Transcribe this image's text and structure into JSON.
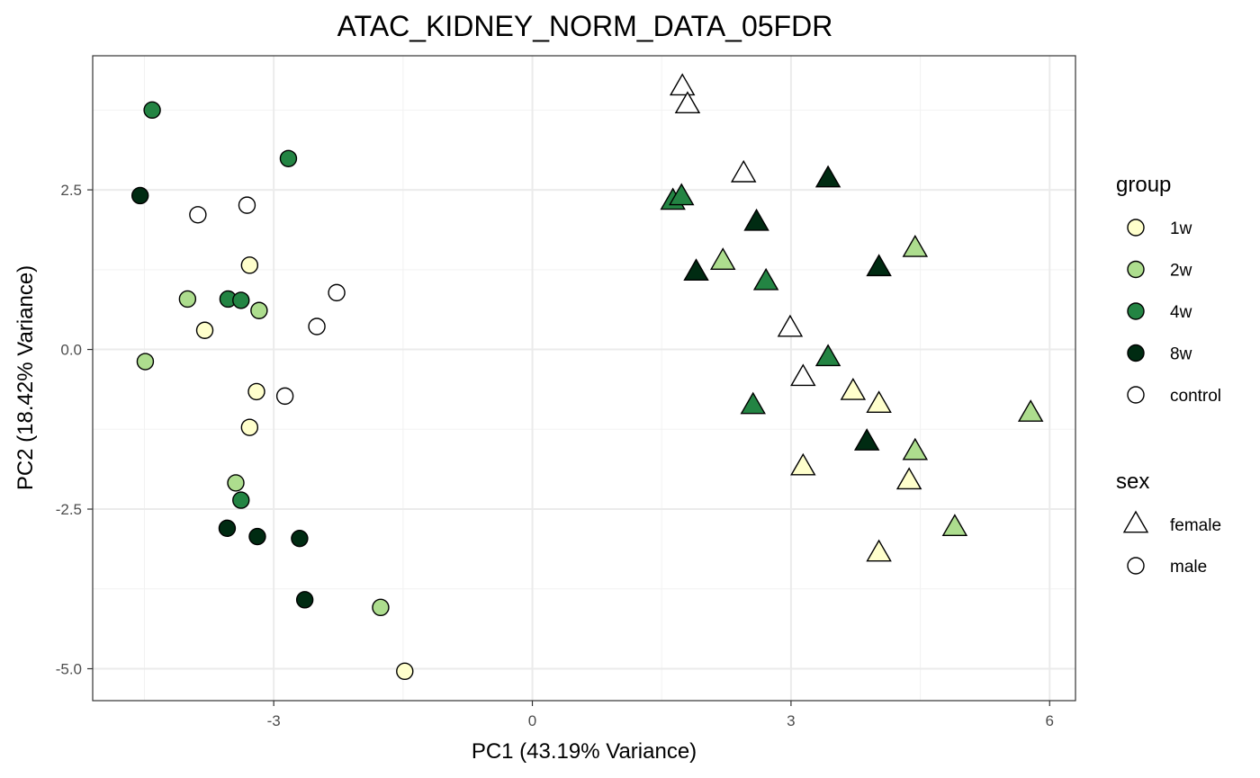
{
  "chart_data": {
    "type": "scatter",
    "title": "ATAC_KIDNEY_NORM_DATA_05FDR",
    "xlabel": "PC1 (43.19% Variance)",
    "ylabel": "PC2 (18.42% Variance)",
    "xlim": [
      -5.1,
      6.3
    ],
    "ylim": [
      -5.5,
      4.6
    ],
    "x_ticks": [
      -3,
      0,
      3,
      6
    ],
    "x_tick_labels": [
      "-3",
      "0",
      "3",
      "6"
    ],
    "y_ticks": [
      2.5,
      0,
      -2.5,
      -5
    ],
    "y_tick_labels": [
      "2.5",
      "0.0",
      "-2.5",
      "-5.0"
    ],
    "grid": true,
    "legend_position": "right",
    "legend_color": {
      "title": "group",
      "items": [
        {
          "label": "1w",
          "color": "#FFFFCC"
        },
        {
          "label": "2w",
          "color": "#ADDD8E"
        },
        {
          "label": "4w",
          "color": "#238443"
        },
        {
          "label": "8w",
          "color": "#002B12"
        },
        {
          "label": "control",
          "color": "#FFFFFF"
        }
      ]
    },
    "legend_shape": {
      "title": "sex",
      "items": [
        {
          "label": "female",
          "shape": "triangle"
        },
        {
          "label": "male",
          "shape": "circle"
        }
      ]
    },
    "points": [
      {
        "x": -4.41,
        "y": 3.75,
        "group": "4w",
        "sex": "male"
      },
      {
        "x": -2.83,
        "y": 2.99,
        "group": "4w",
        "sex": "male"
      },
      {
        "x": -4.55,
        "y": 2.41,
        "group": "8w",
        "sex": "male"
      },
      {
        "x": -3.88,
        "y": 2.11,
        "group": "control",
        "sex": "male"
      },
      {
        "x": -3.31,
        "y": 2.26,
        "group": "control",
        "sex": "male"
      },
      {
        "x": -3.28,
        "y": 1.32,
        "group": "1w",
        "sex": "male"
      },
      {
        "x": -4.0,
        "y": 0.79,
        "group": "2w",
        "sex": "male"
      },
      {
        "x": -3.53,
        "y": 0.79,
        "group": "4w",
        "sex": "male"
      },
      {
        "x": -3.38,
        "y": 0.77,
        "group": "4w",
        "sex": "male"
      },
      {
        "x": -3.17,
        "y": 0.61,
        "group": "2w",
        "sex": "male"
      },
      {
        "x": -2.27,
        "y": 0.89,
        "group": "control",
        "sex": "male"
      },
      {
        "x": -2.5,
        "y": 0.36,
        "group": "control",
        "sex": "male"
      },
      {
        "x": -3.8,
        "y": 0.3,
        "group": "1w",
        "sex": "male"
      },
      {
        "x": -4.49,
        "y": -0.19,
        "group": "2w",
        "sex": "male"
      },
      {
        "x": -3.2,
        "y": -0.66,
        "group": "1w",
        "sex": "male"
      },
      {
        "x": -2.87,
        "y": -0.73,
        "group": "control",
        "sex": "male"
      },
      {
        "x": -3.28,
        "y": -1.22,
        "group": "1w",
        "sex": "male"
      },
      {
        "x": -3.44,
        "y": -2.09,
        "group": "2w",
        "sex": "male"
      },
      {
        "x": -3.38,
        "y": -2.36,
        "group": "4w",
        "sex": "male"
      },
      {
        "x": -3.54,
        "y": -2.8,
        "group": "8w",
        "sex": "male"
      },
      {
        "x": -3.19,
        "y": -2.93,
        "group": "8w",
        "sex": "male"
      },
      {
        "x": -2.7,
        "y": -2.96,
        "group": "8w",
        "sex": "male"
      },
      {
        "x": -2.64,
        "y": -3.92,
        "group": "8w",
        "sex": "male"
      },
      {
        "x": -1.76,
        "y": -4.04,
        "group": "2w",
        "sex": "male"
      },
      {
        "x": -1.48,
        "y": -5.04,
        "group": "1w",
        "sex": "male"
      },
      {
        "x": 1.74,
        "y": 4.11,
        "group": "control",
        "sex": "female"
      },
      {
        "x": 1.8,
        "y": 3.83,
        "group": "control",
        "sex": "female"
      },
      {
        "x": 2.45,
        "y": 2.75,
        "group": "control",
        "sex": "female"
      },
      {
        "x": 3.43,
        "y": 2.67,
        "group": "8w",
        "sex": "female"
      },
      {
        "x": 1.63,
        "y": 2.32,
        "group": "4w",
        "sex": "female"
      },
      {
        "x": 1.73,
        "y": 2.39,
        "group": "4w",
        "sex": "female"
      },
      {
        "x": 2.6,
        "y": 1.99,
        "group": "8w",
        "sex": "female"
      },
      {
        "x": 4.44,
        "y": 1.58,
        "group": "2w",
        "sex": "female"
      },
      {
        "x": 2.21,
        "y": 1.38,
        "group": "2w",
        "sex": "female"
      },
      {
        "x": 1.9,
        "y": 1.21,
        "group": "8w",
        "sex": "female"
      },
      {
        "x": 4.02,
        "y": 1.28,
        "group": "8w",
        "sex": "female"
      },
      {
        "x": 2.71,
        "y": 1.06,
        "group": "4w",
        "sex": "female"
      },
      {
        "x": 2.99,
        "y": 0.33,
        "group": "control",
        "sex": "female"
      },
      {
        "x": 3.43,
        "y": -0.13,
        "group": "4w",
        "sex": "female"
      },
      {
        "x": 3.14,
        "y": -0.44,
        "group": "control",
        "sex": "female"
      },
      {
        "x": 3.72,
        "y": -0.66,
        "group": "1w",
        "sex": "female"
      },
      {
        "x": 4.02,
        "y": -0.86,
        "group": "1w",
        "sex": "female"
      },
      {
        "x": 2.56,
        "y": -0.88,
        "group": "4w",
        "sex": "female"
      },
      {
        "x": 5.78,
        "y": -1.0,
        "group": "2w",
        "sex": "female"
      },
      {
        "x": 3.88,
        "y": -1.45,
        "group": "8w",
        "sex": "female"
      },
      {
        "x": 4.44,
        "y": -1.6,
        "group": "2w",
        "sex": "female"
      },
      {
        "x": 3.14,
        "y": -1.84,
        "group": "1w",
        "sex": "female"
      },
      {
        "x": 4.37,
        "y": -2.06,
        "group": "1w",
        "sex": "female"
      },
      {
        "x": 4.9,
        "y": -2.79,
        "group": "2w",
        "sex": "female"
      },
      {
        "x": 4.02,
        "y": -3.19,
        "group": "1w",
        "sex": "female"
      }
    ]
  }
}
